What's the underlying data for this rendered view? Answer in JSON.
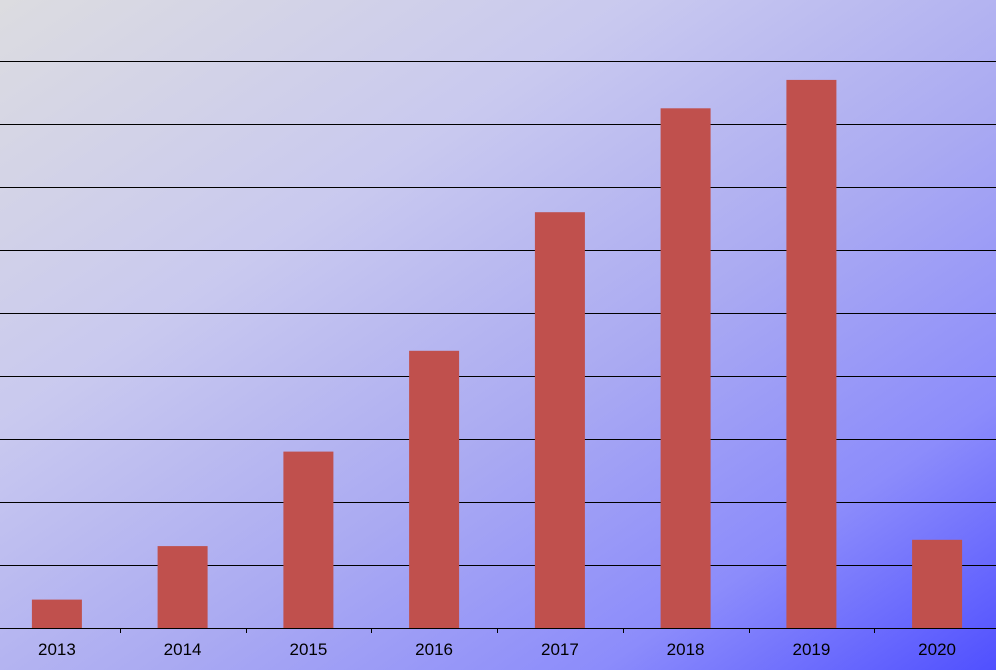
{
  "chart_data": {
    "type": "bar",
    "categories": [
      "2013",
      "2014",
      "2015",
      "2016",
      "2017",
      "2018",
      "2019",
      "2020"
    ],
    "values": [
      0.45,
      1.3,
      2.8,
      4.4,
      6.6,
      8.25,
      8.7,
      1.4
    ],
    "title": "",
    "xlabel": "",
    "ylabel": "",
    "ylim": [
      0,
      9
    ],
    "y_gridline_step": 1,
    "grid": true,
    "legend": "none",
    "colors": {
      "bar": "#c0504d",
      "gridline": "#000000",
      "background_start": "#dcdce0",
      "background_end": "#5050ff"
    }
  }
}
